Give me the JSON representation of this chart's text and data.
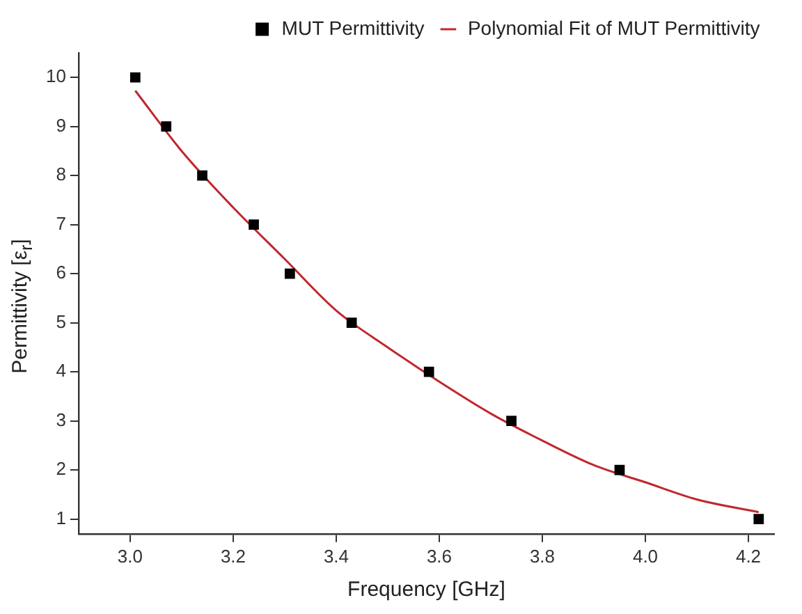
{
  "chart_data": {
    "type": "scatter",
    "xlabel": "Frequency [GHz]",
    "ylabel": "Permittivity [ε$_{r}$]",
    "series": [
      {
        "name": "MUT Permittivity",
        "type": "scatter",
        "color": "#000000",
        "marker": "square",
        "x": [
          3.01,
          3.07,
          3.14,
          3.24,
          3.31,
          3.43,
          3.58,
          3.74,
          3.95,
          4.22
        ],
        "values": [
          10,
          9,
          8,
          7,
          6,
          5,
          4,
          3,
          2,
          1
        ]
      },
      {
        "name": "Polynomial Fit of MUT Permittivity",
        "type": "line",
        "color": "#c0272d",
        "marker": "none",
        "x": [
          3.01,
          3.1,
          3.2,
          3.3,
          3.4,
          3.5,
          3.6,
          3.7,
          3.8,
          3.9,
          4.0,
          4.1,
          4.22
        ],
        "values": [
          9.73,
          8.5,
          7.35,
          6.3,
          5.25,
          4.5,
          3.8,
          3.15,
          2.6,
          2.1,
          1.75,
          1.4,
          1.14
        ]
      }
    ],
    "xlim": [
      2.9,
      4.25
    ],
    "xticks": [
      {
        "value": 3,
        "label": "3.0"
      },
      {
        "value": 3.2,
        "label": "3.2"
      },
      {
        "value": 3.4,
        "label": "3.4"
      },
      {
        "value": 3.6,
        "label": "3.6"
      },
      {
        "value": 3.8,
        "label": "3.8"
      },
      {
        "value": 4,
        "label": "4.0"
      },
      {
        "value": 4.2,
        "label": "4.2"
      }
    ],
    "ylim": [
      0.7,
      10.5
    ],
    "yticks": [
      1,
      2,
      3,
      4,
      5,
      6,
      7,
      8,
      9,
      10
    ],
    "grid": false,
    "legend": "top right"
  }
}
